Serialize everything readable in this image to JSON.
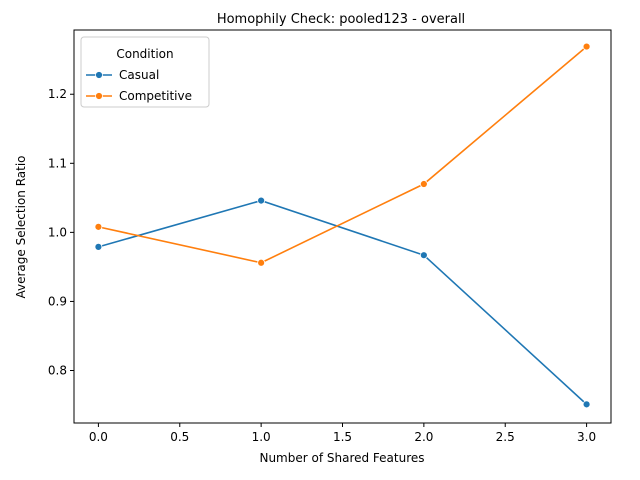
{
  "chart_data": {
    "type": "line",
    "title": "Homophily Check: pooled123 - overall",
    "xlabel": "Number of Shared Features",
    "ylabel": "Average Selection Ratio",
    "xlim": [
      -0.15,
      3.15
    ],
    "ylim": [
      0.724,
      1.293
    ],
    "xticks": [
      0.0,
      0.5,
      1.0,
      1.5,
      2.0,
      2.5,
      3.0
    ],
    "xtick_labels": [
      "0.0",
      "0.5",
      "1.0",
      "1.5",
      "2.0",
      "2.5",
      "3.0"
    ],
    "yticks": [
      0.8,
      0.9,
      1.0,
      1.1,
      1.2
    ],
    "ytick_labels": [
      "0.8",
      "0.9",
      "1.0",
      "1.1",
      "1.2"
    ],
    "grid": false,
    "legend": {
      "title": "Condition",
      "placement": "top-left"
    },
    "x": [
      0,
      1,
      2,
      3
    ],
    "series": [
      {
        "name": "Casual",
        "color": "#1f77b4",
        "values": [
          0.979,
          1.046,
          0.967,
          0.751
        ]
      },
      {
        "name": "Competitive",
        "color": "#ff7f0e",
        "values": [
          1.008,
          0.956,
          1.07,
          1.269
        ]
      }
    ]
  }
}
